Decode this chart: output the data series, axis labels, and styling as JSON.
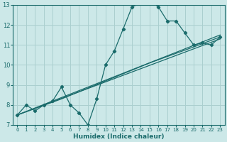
{
  "xlabel": "Humidex (Indice chaleur)",
  "bg_color": "#cce8e8",
  "grid_color": "#aacfcf",
  "line_color": "#1a6b6b",
  "xlim": [
    -0.5,
    23.5
  ],
  "ylim": [
    7,
    13
  ],
  "xticks": [
    0,
    1,
    2,
    3,
    4,
    5,
    6,
    7,
    8,
    9,
    10,
    11,
    12,
    13,
    14,
    15,
    16,
    17,
    18,
    19,
    20,
    21,
    22,
    23
  ],
  "yticks": [
    7,
    8,
    9,
    10,
    11,
    12,
    13
  ],
  "line1_x": [
    0,
    1,
    2,
    3,
    4,
    5,
    6,
    7,
    8,
    9,
    10,
    11,
    12,
    13,
    14,
    15,
    16,
    17,
    18,
    19,
    20,
    21,
    22,
    23
  ],
  "line1_y": [
    7.5,
    8.0,
    7.7,
    8.0,
    8.2,
    8.9,
    8.0,
    7.6,
    7.0,
    8.3,
    10.0,
    10.7,
    11.8,
    12.9,
    13.1,
    13.2,
    12.9,
    12.2,
    12.2,
    11.6,
    11.0,
    11.1,
    11.0,
    11.4
  ],
  "line2_x": [
    0,
    23
  ],
  "line2_y": [
    7.5,
    11.5
  ],
  "line3_x": [
    0,
    23
  ],
  "line3_y": [
    7.5,
    11.3
  ],
  "line4_x": [
    0,
    5,
    10,
    15,
    20,
    23
  ],
  "line4_y": [
    7.5,
    8.3,
    9.2,
    10.1,
    10.9,
    11.4
  ]
}
